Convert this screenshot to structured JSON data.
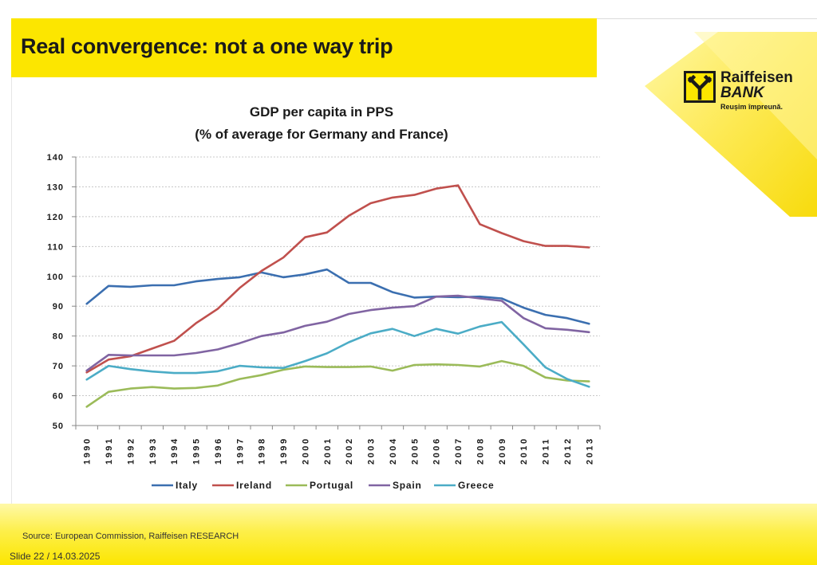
{
  "slide": {
    "title": "Real convergence: not a one way trip",
    "source": "Source: European Commission, Raiffeisen RESEARCH",
    "footer": "Slide 22 / 14.03.2025"
  },
  "logo": {
    "name": "Raiffeisen",
    "bank": "BANK",
    "tagline": "Reușim împreună."
  },
  "colors": {
    "accent": "#fce600",
    "italy": "#3b6fb0",
    "ireland": "#c0504d",
    "portugal": "#9bbb59",
    "spain": "#8064a2",
    "greece": "#4bacc6"
  },
  "chart_data": {
    "type": "line",
    "title_line1": "GDP per capita in PPS",
    "title_line2": "(% of average for Germany and France)",
    "xlabel": "",
    "ylabel": "",
    "ylim": [
      50,
      140
    ],
    "yticks": [
      50,
      60,
      70,
      80,
      90,
      100,
      110,
      120,
      130,
      140
    ],
    "grid": true,
    "legend_position": "bottom",
    "categories": [
      "1990",
      "1991",
      "1992",
      "1993",
      "1994",
      "1995",
      "1996",
      "1997",
      "1998",
      "1999",
      "2000",
      "2001",
      "2002",
      "2003",
      "2004",
      "2005",
      "2006",
      "2007",
      "2008",
      "2009",
      "2010",
      "2011",
      "2012",
      "2013"
    ],
    "series": [
      {
        "name": "Italy",
        "color": "#3b6fb0",
        "values": [
          90.8,
          96.8,
          96.5,
          97.0,
          97.0,
          98.3,
          99.1,
          99.7,
          101.3,
          99.7,
          100.7,
          102.3,
          97.8,
          97.8,
          94.7,
          92.9,
          93.2,
          93.0,
          93.2,
          92.6,
          89.5,
          87.1,
          86.0,
          84.1
        ]
      },
      {
        "name": "Ireland",
        "color": "#c0504d",
        "values": [
          67.8,
          72.1,
          73.2,
          75.8,
          78.4,
          84.3,
          89.1,
          96.1,
          101.8,
          106.3,
          113.1,
          114.7,
          120.3,
          124.5,
          126.4,
          127.3,
          129.4,
          130.5,
          117.5,
          114.5,
          111.8,
          110.2,
          110.2,
          109.7
        ]
      },
      {
        "name": "Portugal",
        "color": "#9bbb59",
        "values": [
          56.3,
          61.3,
          62.4,
          62.9,
          62.4,
          62.6,
          63.4,
          65.6,
          66.9,
          68.7,
          69.8,
          69.6,
          69.6,
          69.8,
          68.4,
          70.3,
          70.5,
          70.3,
          69.8,
          71.6,
          70.0,
          66.1,
          65.1,
          64.8
        ]
      },
      {
        "name": "Spain",
        "color": "#8064a2",
        "values": [
          68.4,
          73.7,
          73.5,
          73.5,
          73.5,
          74.3,
          75.5,
          77.6,
          80.0,
          81.2,
          83.4,
          84.8,
          87.4,
          88.7,
          89.5,
          90.0,
          93.2,
          93.5,
          92.6,
          91.8,
          86.0,
          82.6,
          82.1,
          81.3
        ]
      },
      {
        "name": "Greece",
        "color": "#4bacc6",
        "values": [
          65.4,
          70.0,
          68.9,
          68.1,
          67.6,
          67.6,
          68.2,
          70.0,
          69.5,
          69.3,
          71.6,
          74.2,
          77.9,
          80.9,
          82.4,
          80.0,
          82.4,
          80.8,
          83.2,
          84.7,
          77.2,
          69.5,
          65.6,
          63.0
        ]
      }
    ]
  }
}
